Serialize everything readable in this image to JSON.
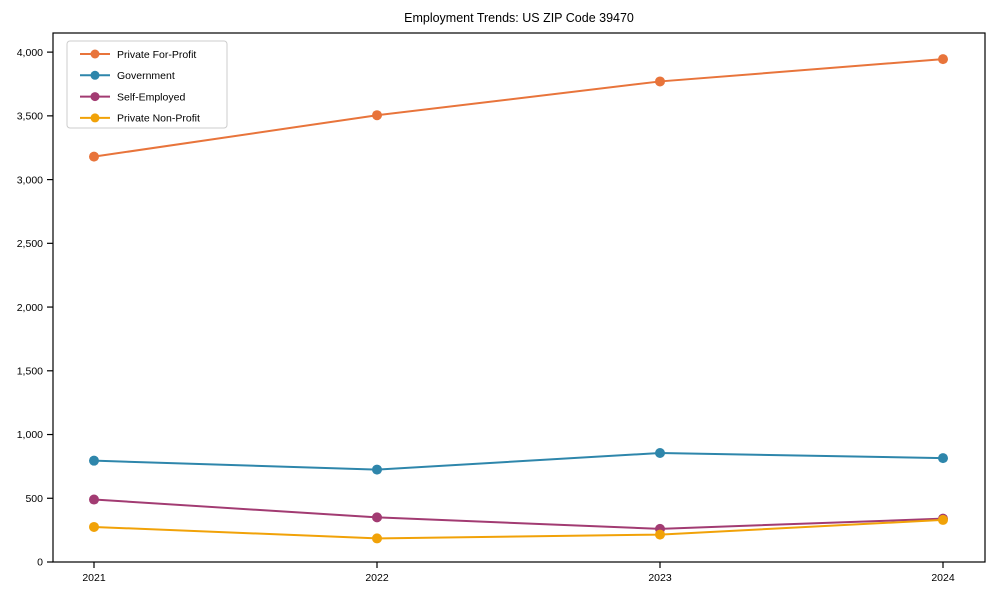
{
  "chart_data": {
    "type": "line",
    "title": "Employment Trends: US ZIP Code 39470",
    "xlabel": "",
    "ylabel": "",
    "x": [
      "2021",
      "2022",
      "2023",
      "2024"
    ],
    "series": [
      {
        "name": "Private For-Profit",
        "color": "#E8743B",
        "values": [
          3180,
          3505,
          3770,
          3945
        ]
      },
      {
        "name": "Government",
        "color": "#2E86AB",
        "values": [
          795,
          725,
          855,
          815
        ]
      },
      {
        "name": "Self-Employed",
        "color": "#A23B72",
        "values": [
          490,
          350,
          260,
          340
        ]
      },
      {
        "name": "Private Non-Profit",
        "color": "#F1A208",
        "values": [
          275,
          185,
          215,
          330
        ]
      }
    ],
    "ylim": [
      0,
      4150
    ],
    "yticks": [
      0,
      500,
      1000,
      1500,
      2000,
      2500,
      3000,
      3500,
      4000
    ],
    "ytick_labels": [
      "0",
      "500",
      "1,000",
      "1,500",
      "2,000",
      "2,500",
      "3,000",
      "3,500",
      "4,000"
    ],
    "legend_position": "upper left",
    "grid": false,
    "axis_color": "#000000",
    "legend_border_color": "#cccccc",
    "background_color": "#ffffff"
  }
}
